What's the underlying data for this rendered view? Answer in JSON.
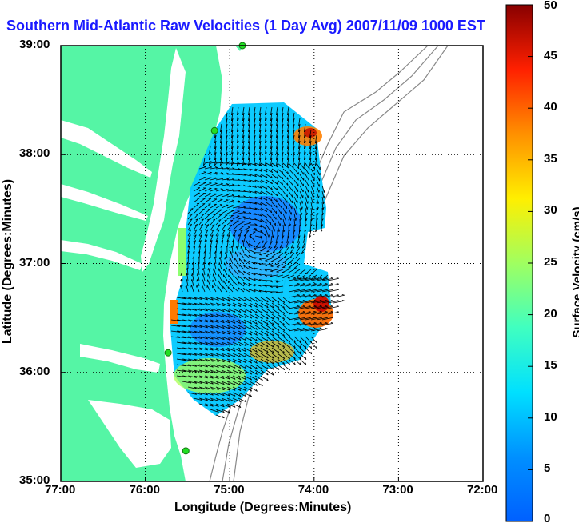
{
  "title": "Southern Mid-Atlantic Raw Velocities (1 Day Avg) 2007/11/09 1000 EST",
  "map": {
    "xlabel": "Longitude (Degrees:Minutes)",
    "ylabel": "Latitude (Degrees:Minutes)",
    "x_ticks": [
      "77:00",
      "76:00",
      "75:00",
      "74:00",
      "73:00",
      "72:00"
    ],
    "y_ticks": [
      "39:00",
      "38:00",
      "37:00",
      "36:00",
      "35:00"
    ],
    "x_range": [
      -77,
      -72
    ],
    "y_range": [
      35,
      39
    ],
    "grid": true,
    "land_color": "#55f5a5",
    "water_color": "#ffffff",
    "bathymetry_color": "#888888",
    "vector_color": "#000000",
    "station_color": "#22dd22",
    "stations": [
      {
        "lon": -74.85,
        "lat": 39.0
      },
      {
        "lon": -75.18,
        "lat": 38.22
      },
      {
        "lon": -75.73,
        "lat": 36.18
      },
      {
        "lon": -75.52,
        "lat": 35.28
      }
    ]
  },
  "colorbar": {
    "label": "Surface Velocity (cm/s)",
    "ticks": [
      "0",
      "5",
      "10",
      "15",
      "20",
      "25",
      "30",
      "35",
      "40",
      "45",
      "50"
    ],
    "min": 0,
    "max": 50,
    "colormap": "jet"
  }
}
